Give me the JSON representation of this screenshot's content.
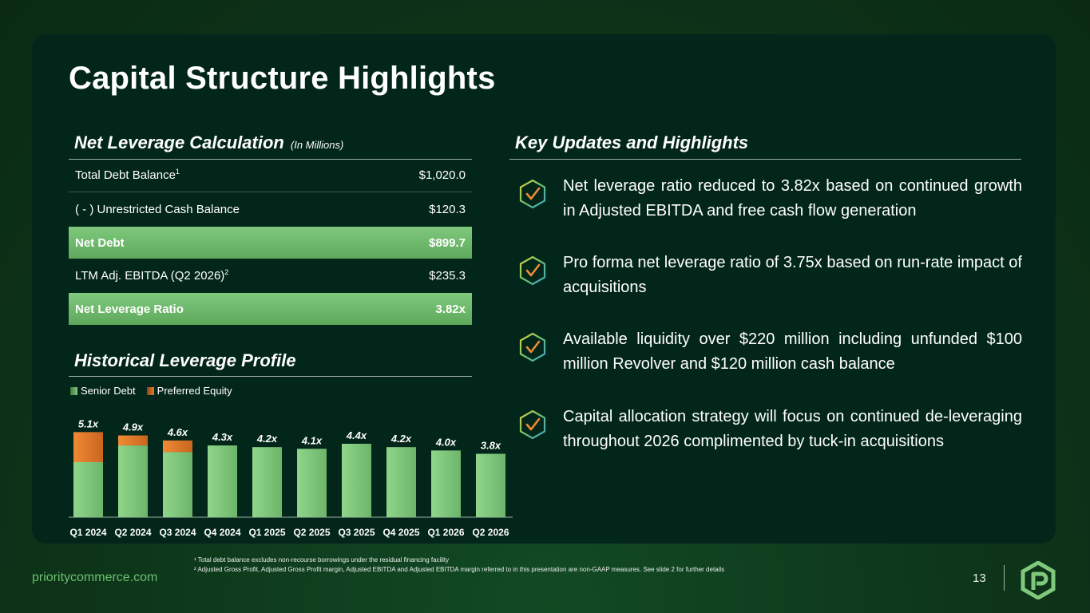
{
  "title": "Capital Structure Highlights",
  "net_leverage": {
    "heading": "Net Leverage Calculation",
    "subheading": "(In Millions)",
    "rows": [
      {
        "label": "Total Debt Balance",
        "sup": "1",
        "value": "$1,020.0"
      },
      {
        "label": "( - ) Unrestricted Cash Balance",
        "sup": "",
        "value": "$120.3"
      },
      {
        "label": "Net Debt",
        "sup": "",
        "value": "$899.7"
      },
      {
        "label": "LTM Adj. EBITDA (Q2 2026)",
        "sup": "2",
        "value": "$235.3"
      },
      {
        "label": "Net Leverage Ratio",
        "sup": "",
        "value": "3.82x"
      }
    ]
  },
  "historical": {
    "heading": "Historical Leverage Profile",
    "legend": [
      "Senior Debt",
      "Preferred Equity"
    ]
  },
  "chart_data": {
    "type": "bar",
    "stacked": true,
    "categories": [
      "Q1 2024",
      "Q2 2024",
      "Q3 2024",
      "Q4 2024",
      "Q1 2025",
      "Q2 2025",
      "Q3 2025",
      "Q4 2025",
      "Q1 2026",
      "Q2 2026"
    ],
    "series": [
      {
        "name": "Senior Debt",
        "values": [
          3.3,
          4.3,
          3.9,
          4.3,
          4.2,
          4.1,
          4.4,
          4.2,
          4.0,
          3.8
        ],
        "color": "#7fc97c"
      },
      {
        "name": "Preferred Equity",
        "values": [
          1.8,
          0.6,
          0.7,
          0,
          0,
          0,
          0,
          0,
          0,
          0
        ],
        "color": "#e37b2c"
      }
    ],
    "data_labels": [
      "5.1x",
      "4.9x",
      "4.6x",
      "4.3x",
      "4.2x",
      "4.1x",
      "4.4x",
      "4.2x",
      "4.0x",
      "3.8x"
    ],
    "ylim": [
      0,
      5.5
    ],
    "grid": false,
    "legend_position": "top-left"
  },
  "key_updates": {
    "heading": "Key Updates and Highlights",
    "items": [
      "Net leverage ratio reduced to 3.82x based on continued growth in Adjusted EBITDA and free cash flow generation",
      "Pro forma net leverage ratio of 3.75x based on run-rate impact of acquisitions",
      "Available liquidity over $220 million including unfunded $100 million Revolver and $120 million cash balance",
      "Capital allocation strategy will focus on continued de-leveraging throughout 2026 complimented by tuck-in acquisitions"
    ]
  },
  "footnotes": [
    "¹ Total debt balance excludes non-recourse borrowings under the residual financing facility",
    "² Adjusted Gross Profit, Adjusted Gross Profit margin, Adjusted EBITDA and Adjusted EBITDA margin referred to in this presentation are non-GAAP measures. See slide 2 for further details"
  ],
  "footer": {
    "url": "prioritycommerce.com",
    "page_number": "13"
  },
  "icons": {
    "check": "check-hexagon-icon",
    "logo": "priority-logo-icon"
  },
  "colors": {
    "accent_green": "#7fc97c",
    "preferred_orange": "#e37b2c",
    "card_bg": "#03261a"
  }
}
